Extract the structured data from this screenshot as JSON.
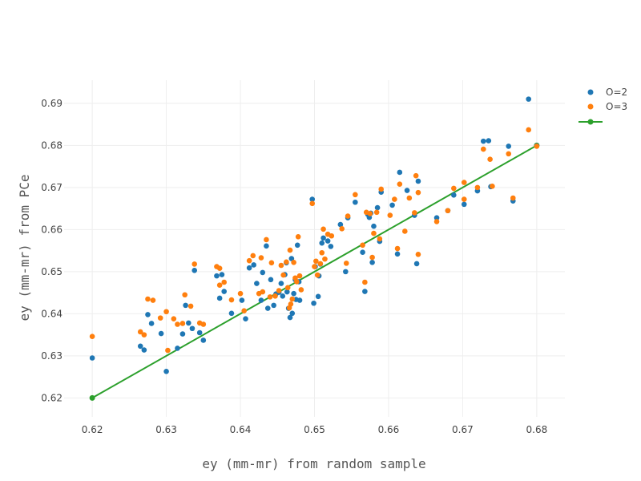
{
  "chart_data": {
    "type": "scatter",
    "title": "",
    "xlabel": "ey (mm-mr) from random sample",
    "ylabel": "ey (mm-mr) from PCe",
    "xlim": [
      0.6162,
      0.6838
    ],
    "ylim": [
      0.6155,
      0.6955
    ],
    "x_ticks": [
      0.62,
      0.63,
      0.64,
      0.65,
      0.66,
      0.67,
      0.68
    ],
    "y_ticks": [
      0.62,
      0.63,
      0.64,
      0.65,
      0.66,
      0.67,
      0.68,
      0.69
    ],
    "x_tick_labels": [
      "0.62",
      "0.63",
      "0.64",
      "0.65",
      "0.66",
      "0.67",
      "0.68"
    ],
    "y_tick_labels": [
      "0.62",
      "0.63",
      "0.64",
      "0.65",
      "0.66",
      "0.67",
      "0.68",
      "0.69"
    ],
    "grid": true,
    "legend_position": "top-right",
    "series": [
      {
        "name": "O=2",
        "color": "#1f77b4",
        "mode": "markers",
        "points": [
          [
            0.62,
            0.6295
          ],
          [
            0.6265,
            0.6323
          ],
          [
            0.627,
            0.6314
          ],
          [
            0.6275,
            0.6398
          ],
          [
            0.628,
            0.6377
          ],
          [
            0.6293,
            0.6353
          ],
          [
            0.63,
            0.6263
          ],
          [
            0.6315,
            0.6318
          ],
          [
            0.6322,
            0.6352
          ],
          [
            0.6326,
            0.642
          ],
          [
            0.633,
            0.6378
          ],
          [
            0.6335,
            0.6365
          ],
          [
            0.6338,
            0.6503
          ],
          [
            0.6345,
            0.6355
          ],
          [
            0.635,
            0.6337
          ],
          [
            0.6368,
            0.649
          ],
          [
            0.6372,
            0.6437
          ],
          [
            0.6375,
            0.6493
          ],
          [
            0.6378,
            0.6453
          ],
          [
            0.6388,
            0.6401
          ],
          [
            0.6402,
            0.6432
          ],
          [
            0.6407,
            0.6388
          ],
          [
            0.6412,
            0.6509
          ],
          [
            0.6418,
            0.6516
          ],
          [
            0.6422,
            0.6472
          ],
          [
            0.6428,
            0.6432
          ],
          [
            0.643,
            0.6498
          ],
          [
            0.6435,
            0.6561
          ],
          [
            0.6437,
            0.6413
          ],
          [
            0.6441,
            0.6481
          ],
          [
            0.6445,
            0.642
          ],
          [
            0.6448,
            0.6447
          ],
          [
            0.6452,
            0.6451
          ],
          [
            0.6455,
            0.6472
          ],
          [
            0.6457,
            0.6442
          ],
          [
            0.646,
            0.6493
          ],
          [
            0.6462,
            0.6521
          ],
          [
            0.6463,
            0.6452
          ],
          [
            0.6465,
            0.6413
          ],
          [
            0.6467,
            0.6391
          ],
          [
            0.6469,
            0.6531
          ],
          [
            0.647,
            0.6401
          ],
          [
            0.6472,
            0.6448
          ],
          [
            0.6474,
            0.6481
          ],
          [
            0.6475,
            0.6434
          ],
          [
            0.6477,
            0.6563
          ],
          [
            0.6479,
            0.6476
          ],
          [
            0.648,
            0.6432
          ],
          [
            0.6497,
            0.6672
          ],
          [
            0.6499,
            0.6425
          ],
          [
            0.6501,
            0.6512
          ],
          [
            0.6505,
            0.6441
          ],
          [
            0.6506,
            0.649
          ],
          [
            0.6508,
            0.6518
          ],
          [
            0.651,
            0.6568
          ],
          [
            0.6512,
            0.658
          ],
          [
            0.6518,
            0.6573
          ],
          [
            0.6522,
            0.656
          ],
          [
            0.6535,
            0.6612
          ],
          [
            0.6542,
            0.65
          ],
          [
            0.6545,
            0.6628
          ],
          [
            0.6555,
            0.6665
          ],
          [
            0.6565,
            0.6546
          ],
          [
            0.6568,
            0.6453
          ],
          [
            0.6572,
            0.6636
          ],
          [
            0.6574,
            0.6629
          ],
          [
            0.6576,
            0.6639
          ],
          [
            0.6578,
            0.6522
          ],
          [
            0.658,
            0.6608
          ],
          [
            0.6585,
            0.6652
          ],
          [
            0.6588,
            0.6572
          ],
          [
            0.659,
            0.6689
          ],
          [
            0.6605,
            0.6658
          ],
          [
            0.6612,
            0.6542
          ],
          [
            0.6615,
            0.6736
          ],
          [
            0.6625,
            0.6693
          ],
          [
            0.6635,
            0.6634
          ],
          [
            0.6638,
            0.6519
          ],
          [
            0.664,
            0.6715
          ],
          [
            0.6665,
            0.6628
          ],
          [
            0.668,
            0.6645
          ],
          [
            0.6688,
            0.6682
          ],
          [
            0.6702,
            0.666
          ],
          [
            0.672,
            0.6692
          ],
          [
            0.6728,
            0.681
          ],
          [
            0.6735,
            0.6811
          ],
          [
            0.6738,
            0.6702
          ],
          [
            0.6762,
            0.6798
          ],
          [
            0.6768,
            0.6668
          ],
          [
            0.6789,
            0.691
          ],
          [
            0.68,
            0.6799
          ]
        ]
      },
      {
        "name": "O=3",
        "color": "#ff7f0e",
        "mode": "markers",
        "points": [
          [
            0.62,
            0.6346
          ],
          [
            0.6265,
            0.6357
          ],
          [
            0.627,
            0.635
          ],
          [
            0.6275,
            0.6435
          ],
          [
            0.6282,
            0.6432
          ],
          [
            0.6292,
            0.639
          ],
          [
            0.63,
            0.6405
          ],
          [
            0.6302,
            0.6313
          ],
          [
            0.631,
            0.6388
          ],
          [
            0.6315,
            0.6375
          ],
          [
            0.6322,
            0.6377
          ],
          [
            0.6325,
            0.6445
          ],
          [
            0.6333,
            0.6418
          ],
          [
            0.6338,
            0.6518
          ],
          [
            0.6345,
            0.6378
          ],
          [
            0.635,
            0.6375
          ],
          [
            0.6368,
            0.6512
          ],
          [
            0.6372,
            0.6508
          ],
          [
            0.6372,
            0.6468
          ],
          [
            0.6378,
            0.6475
          ],
          [
            0.6388,
            0.6433
          ],
          [
            0.64,
            0.6448
          ],
          [
            0.6405,
            0.6407
          ],
          [
            0.6412,
            0.6526
          ],
          [
            0.6417,
            0.6538
          ],
          [
            0.6425,
            0.6448
          ],
          [
            0.6428,
            0.6533
          ],
          [
            0.643,
            0.6452
          ],
          [
            0.6435,
            0.6576
          ],
          [
            0.644,
            0.644
          ],
          [
            0.6442,
            0.6521
          ],
          [
            0.6447,
            0.6442
          ],
          [
            0.6452,
            0.6455
          ],
          [
            0.6455,
            0.6515
          ],
          [
            0.6458,
            0.6492
          ],
          [
            0.6462,
            0.6523
          ],
          [
            0.6464,
            0.6462
          ],
          [
            0.6466,
            0.6414
          ],
          [
            0.6467,
            0.6551
          ],
          [
            0.6468,
            0.6423
          ],
          [
            0.647,
            0.6435
          ],
          [
            0.6472,
            0.6522
          ],
          [
            0.6474,
            0.6485
          ],
          [
            0.6476,
            0.6476
          ],
          [
            0.6478,
            0.6583
          ],
          [
            0.648,
            0.649
          ],
          [
            0.6482,
            0.6457
          ],
          [
            0.6497,
            0.6662
          ],
          [
            0.65,
            0.6512
          ],
          [
            0.6502,
            0.6525
          ],
          [
            0.6504,
            0.6492
          ],
          [
            0.6508,
            0.6519
          ],
          [
            0.651,
            0.6545
          ],
          [
            0.6512,
            0.6601
          ],
          [
            0.6514,
            0.653
          ],
          [
            0.6518,
            0.6589
          ],
          [
            0.6523,
            0.6585
          ],
          [
            0.6537,
            0.6602
          ],
          [
            0.6543,
            0.652
          ],
          [
            0.6545,
            0.6632
          ],
          [
            0.6555,
            0.6683
          ],
          [
            0.6565,
            0.6563
          ],
          [
            0.6568,
            0.6475
          ],
          [
            0.657,
            0.6641
          ],
          [
            0.6575,
            0.6638
          ],
          [
            0.6578,
            0.6534
          ],
          [
            0.658,
            0.6591
          ],
          [
            0.6584,
            0.6641
          ],
          [
            0.6588,
            0.6578
          ],
          [
            0.659,
            0.6696
          ],
          [
            0.6602,
            0.6634
          ],
          [
            0.6608,
            0.6672
          ],
          [
            0.6612,
            0.6555
          ],
          [
            0.6615,
            0.6708
          ],
          [
            0.6622,
            0.6596
          ],
          [
            0.6628,
            0.6675
          ],
          [
            0.6635,
            0.664
          ],
          [
            0.6637,
            0.6728
          ],
          [
            0.664,
            0.6541
          ],
          [
            0.664,
            0.6688
          ],
          [
            0.6665,
            0.6619
          ],
          [
            0.668,
            0.6645
          ],
          [
            0.6688,
            0.6698
          ],
          [
            0.6702,
            0.6672
          ],
          [
            0.6702,
            0.6712
          ],
          [
            0.672,
            0.67
          ],
          [
            0.6728,
            0.6791
          ],
          [
            0.6737,
            0.6767
          ],
          [
            0.674,
            0.6703
          ],
          [
            0.6762,
            0.678
          ],
          [
            0.6768,
            0.6675
          ],
          [
            0.6789,
            0.6837
          ],
          [
            0.68,
            0.6798
          ]
        ]
      },
      {
        "name": "",
        "color": "#2ca02c",
        "mode": "lines+markers",
        "points": [
          [
            0.62,
            0.62
          ],
          [
            0.68,
            0.68
          ]
        ]
      }
    ]
  }
}
